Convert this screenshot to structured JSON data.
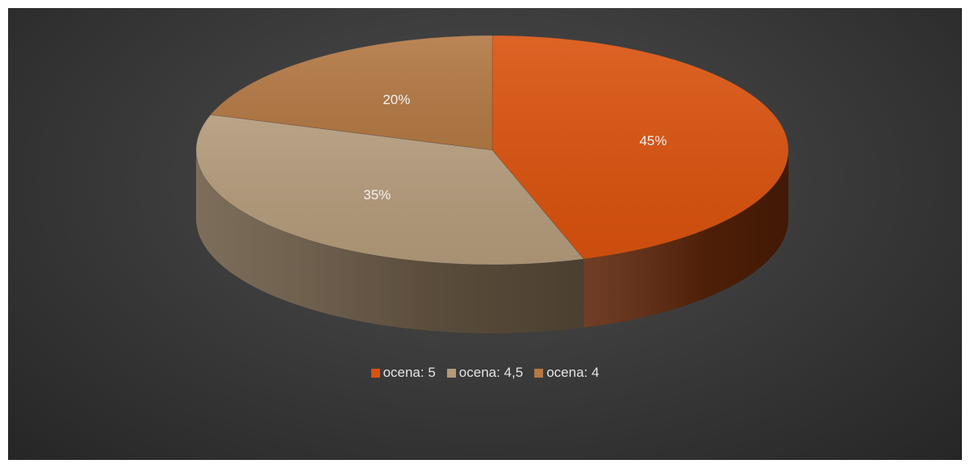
{
  "chart_data": {
    "type": "pie",
    "variant": "3d",
    "categories": [
      "ocena: 5",
      "ocena: 4,5",
      "ocena: 4"
    ],
    "values": [
      45,
      35,
      20
    ],
    "labels": [
      "45%",
      "35%",
      "20%"
    ],
    "colors": [
      "#d9520e",
      "#b39a7a",
      "#b37844"
    ],
    "side_colors": [
      "#5c2408",
      "#6b5a45",
      "#6b4522"
    ],
    "legend_position": "bottom",
    "start_angle_deg": 0,
    "direction": "clockwise"
  }
}
